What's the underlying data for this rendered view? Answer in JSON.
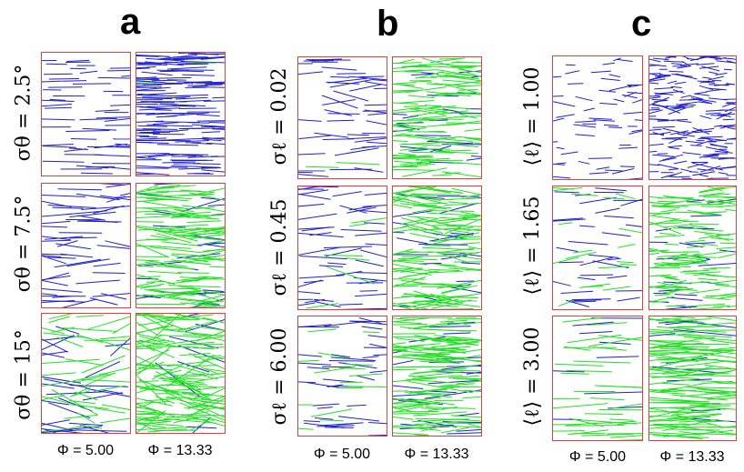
{
  "colors": {
    "border": "#e0403c",
    "blue": "#1f1fd0",
    "green": "#22e022"
  },
  "panels": [
    {
      "letter": "a",
      "column_labels": [
        "Φ = 5.00",
        "Φ = 13.33"
      ],
      "rows": [
        {
          "label": "σθ = 2.5°",
          "cells": [
            {
              "phi": 5.0,
              "density": 55,
              "green_fraction": 0.0,
              "angle_spread_deg": 2.5,
              "length_frac": 0.35
            },
            {
              "phi": 13.33,
              "density": 170,
              "green_fraction": 0.03,
              "angle_spread_deg": 2.5,
              "length_frac": 0.35
            }
          ]
        },
        {
          "label": "σθ = 7.5°",
          "cells": [
            {
              "phi": 5.0,
              "density": 55,
              "green_fraction": 0.0,
              "angle_spread_deg": 7.5,
              "length_frac": 0.4
            },
            {
              "phi": 13.33,
              "density": 150,
              "green_fraction": 0.85,
              "angle_spread_deg": 7.5,
              "length_frac": 0.4
            }
          ]
        },
        {
          "label": "σθ = 15°",
          "cells": [
            {
              "phi": 5.0,
              "density": 70,
              "green_fraction": 0.55,
              "angle_spread_deg": 15,
              "length_frac": 0.45
            },
            {
              "phi": 13.33,
              "density": 150,
              "green_fraction": 0.92,
              "angle_spread_deg": 15,
              "length_frac": 0.45
            }
          ]
        }
      ]
    },
    {
      "letter": "b",
      "column_labels": [
        "Φ = 5.00",
        "Φ = 13.33"
      ],
      "rows": [
        {
          "label": "σℓ = 0.02",
          "cells": [
            {
              "phi": 5.0,
              "density": 50,
              "green_fraction": 0.08,
              "angle_spread_deg": 6,
              "length_frac": 0.35
            },
            {
              "phi": 13.33,
              "density": 150,
              "green_fraction": 0.85,
              "angle_spread_deg": 6,
              "length_frac": 0.35
            }
          ]
        },
        {
          "label": "σℓ = 0.45",
          "cells": [
            {
              "phi": 5.0,
              "density": 55,
              "green_fraction": 0.12,
              "angle_spread_deg": 8,
              "length_frac": 0.4
            },
            {
              "phi": 13.33,
              "density": 150,
              "green_fraction": 0.85,
              "angle_spread_deg": 8,
              "length_frac": 0.4
            }
          ]
        },
        {
          "label": "σℓ = 6.00",
          "cells": [
            {
              "phi": 5.0,
              "density": 55,
              "green_fraction": 0.25,
              "angle_spread_deg": 6,
              "length_frac": 0.35
            },
            {
              "phi": 13.33,
              "density": 150,
              "green_fraction": 0.8,
              "angle_spread_deg": 6,
              "length_frac": 0.45
            }
          ]
        }
      ]
    },
    {
      "letter": "c",
      "column_labels": [
        "Φ = 5.00",
        "Φ = 13.33"
      ],
      "rows": [
        {
          "label": "⟨ℓ⟩ = 1.00",
          "cells": [
            {
              "phi": 5.0,
              "density": 55,
              "green_fraction": 0.0,
              "angle_spread_deg": 8,
              "length_frac": 0.18
            },
            {
              "phi": 13.33,
              "density": 200,
              "green_fraction": 0.0,
              "angle_spread_deg": 10,
              "length_frac": 0.18
            }
          ]
        },
        {
          "label": "⟨ℓ⟩ = 1.65",
          "cells": [
            {
              "phi": 5.0,
              "density": 50,
              "green_fraction": 0.35,
              "angle_spread_deg": 7,
              "length_frac": 0.3
            },
            {
              "phi": 13.33,
              "density": 150,
              "green_fraction": 0.85,
              "angle_spread_deg": 7,
              "length_frac": 0.3
            }
          ]
        },
        {
          "label": "⟨ℓ⟩ = 3.00",
          "cells": [
            {
              "phi": 5.0,
              "density": 45,
              "green_fraction": 0.75,
              "angle_spread_deg": 5,
              "length_frac": 0.5
            },
            {
              "phi": 13.33,
              "density": 140,
              "green_fraction": 0.92,
              "angle_spread_deg": 5,
              "length_frac": 0.55
            }
          ]
        }
      ]
    }
  ]
}
